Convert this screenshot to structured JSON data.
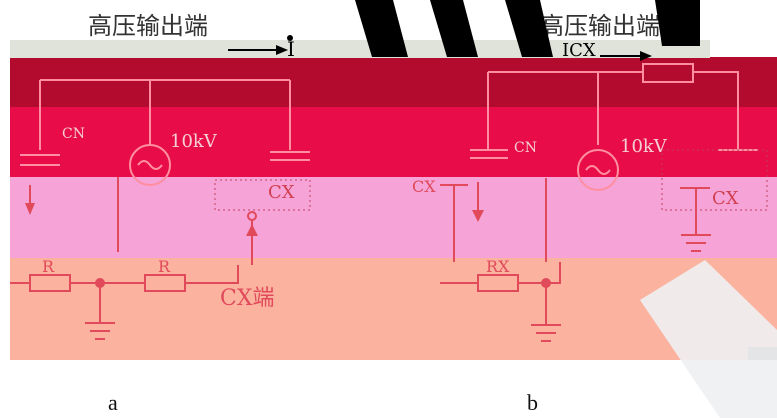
{
  "colors": {
    "band_top": "#b30b2e",
    "band_mid": "#e80c48",
    "band_pink": "#f6a3d8",
    "band_salmon": "#fbb3a0",
    "wire": "#e04a5a",
    "black_stripe": "#000000"
  },
  "figure_a": {
    "title": "高压输出端",
    "current_label": "I",
    "cn_label": "CN",
    "source_label": "10kV",
    "cx_label": "CX",
    "r1_label": "R",
    "r2_label": "R",
    "terminal_label": "CX端",
    "caption": "a"
  },
  "figure_b": {
    "title": "高压输出端",
    "current_label": "ICX",
    "cn_label": "CN",
    "source_label": "10kV",
    "cx_left_label": "CX",
    "cx_right_label": "CX",
    "r_label": "RX",
    "caption": "b"
  }
}
